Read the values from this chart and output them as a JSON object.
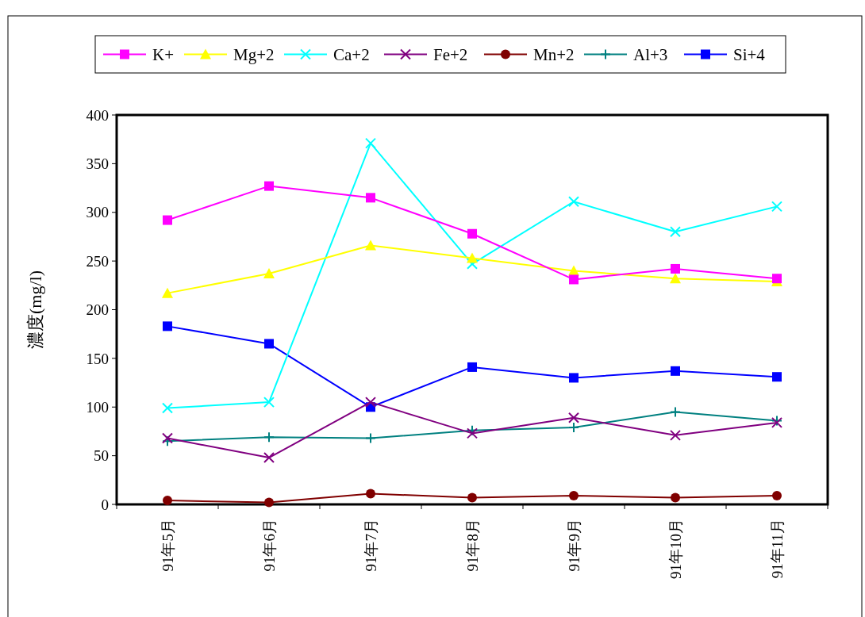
{
  "chart_data": {
    "type": "line",
    "ylabel": "濃度(mg/l)",
    "categories": [
      "91年5月",
      "91年6月",
      "91年7月",
      "91年8月",
      "91年9月",
      "91年10月",
      "91年11月"
    ],
    "ylim": [
      0,
      400
    ],
    "yticks": [
      0,
      50,
      100,
      150,
      200,
      250,
      300,
      350,
      400
    ],
    "grid": false,
    "legend": "top",
    "line_style": "solid",
    "series": [
      {
        "name": "K+",
        "color": "#ff00ff",
        "marker": "square",
        "values": [
          292,
          327,
          315,
          278,
          231,
          242,
          232
        ]
      },
      {
        "name": "Mg+2",
        "color": "#ffff00",
        "marker": "triangle",
        "values": [
          217,
          237,
          266,
          253,
          240,
          232,
          229
        ]
      },
      {
        "name": "Ca+2",
        "color": "#00ffff",
        "marker": "cross",
        "values": [
          99,
          105,
          371,
          247,
          311,
          280,
          306
        ]
      },
      {
        "name": "Fe+2",
        "color": "#800080",
        "marker": "cross",
        "values": [
          68,
          48,
          105,
          73,
          89,
          71,
          84
        ]
      },
      {
        "name": "Mn+2",
        "color": "#800000",
        "marker": "circle",
        "values": [
          4,
          2,
          11,
          7,
          9,
          7,
          9
        ]
      },
      {
        "name": "Al+3",
        "color": "#008080",
        "marker": "plus",
        "values": [
          65,
          69,
          68,
          76,
          79,
          95,
          86
        ]
      },
      {
        "name": "Si+4",
        "color": "#0000ff",
        "marker": "square",
        "values": [
          183,
          165,
          100,
          141,
          130,
          137,
          131
        ]
      }
    ]
  }
}
